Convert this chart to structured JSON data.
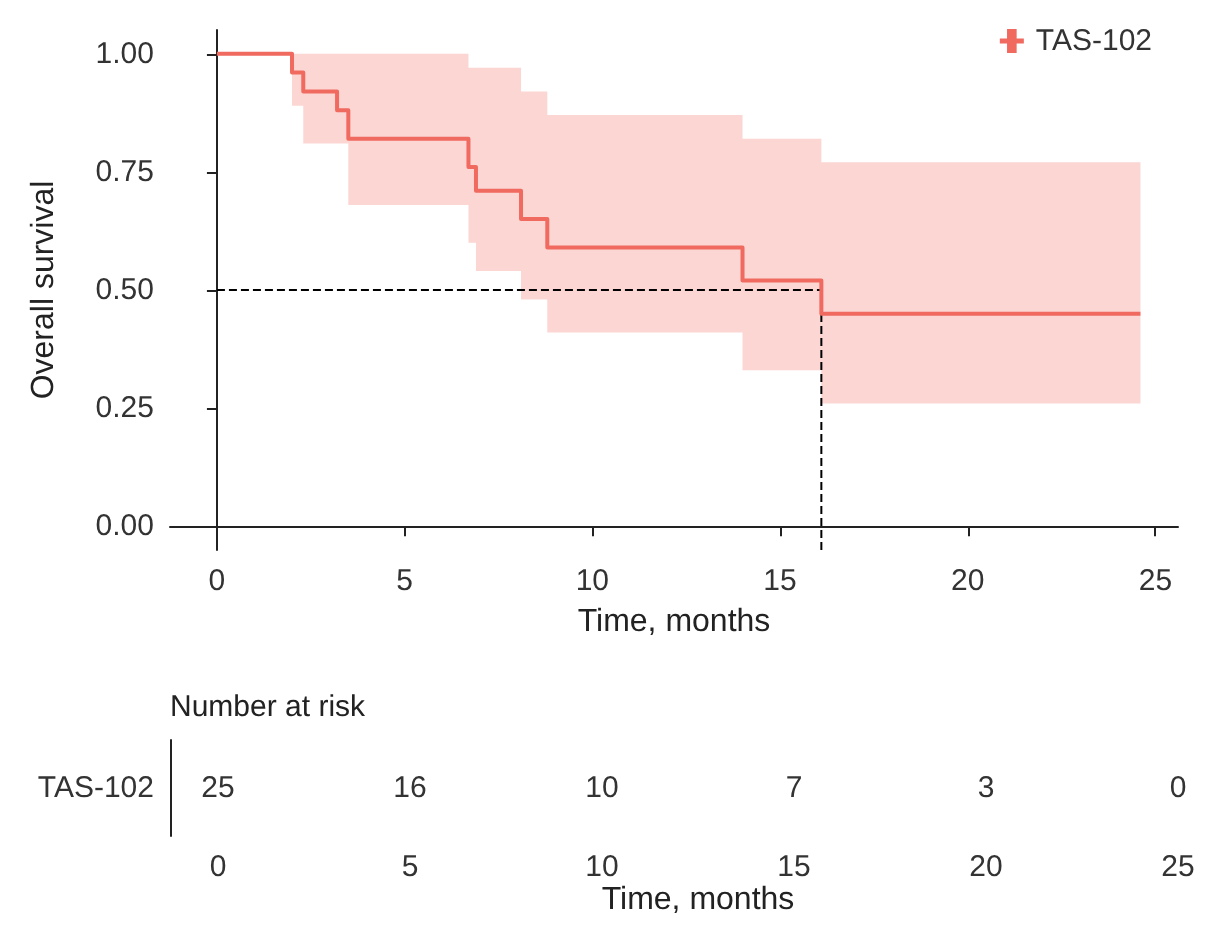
{
  "chart_data": [
    {
      "type": "step",
      "xlabel": "Time, months",
      "ylabel": "Overall survival",
      "xlim": [
        -1.25,
        25.6
      ],
      "xticks": [
        0,
        5,
        10,
        15,
        20,
        25
      ],
      "ylim": [
        -0.05,
        1.05
      ],
      "yticks": [
        {
          "value": 0,
          "label": "0.00"
        },
        {
          "value": 0.25,
          "label": "0.25"
        },
        {
          "value": 0.5,
          "label": "0.50"
        },
        {
          "value": 0.75,
          "label": "0.75"
        },
        {
          "value": 1,
          "label": "1.00"
        }
      ],
      "grid": false,
      "legend": "top right",
      "series": [
        {
          "name": "TAS-102",
          "color": "#f06a60",
          "x": [
            0,
            2,
            2.3,
            3.2,
            3.5,
            6.7,
            6.9,
            8.1,
            8.8,
            14,
            16.1,
            24.6
          ],
          "values": [
            1,
            0.96,
            0.92,
            0.88,
            0.82,
            0.76,
            0.71,
            0.65,
            0.59,
            0.52,
            0.45,
            0.45
          ],
          "lower": [
            1,
            0.89,
            0.81,
            0.81,
            0.68,
            0.6,
            0.54,
            0.48,
            0.41,
            0.33,
            0.26,
            0.26
          ],
          "upper": [
            1,
            1,
            1,
            1,
            1,
            0.97,
            0.97,
            0.92,
            0.87,
            0.82,
            0.77,
            0.77
          ]
        }
      ],
      "ref_lines": [
        {
          "axis": "y",
          "value": 0.5,
          "color": "#000000",
          "line_style": "dashed"
        },
        {
          "axis": "x",
          "value": 16.1,
          "color": "#000000",
          "line_style": "dashed"
        }
      ]
    },
    {
      "type": "heatmap",
      "title": "Number at risk",
      "xlabel": "Time, months",
      "categories": [
        "0",
        "5",
        "10",
        "15",
        "20",
        "25"
      ],
      "y_categories": [
        "TAS-102"
      ],
      "data_labels": true,
      "cells": [
        [
          25,
          16,
          10,
          7,
          3,
          0
        ]
      ]
    }
  ]
}
